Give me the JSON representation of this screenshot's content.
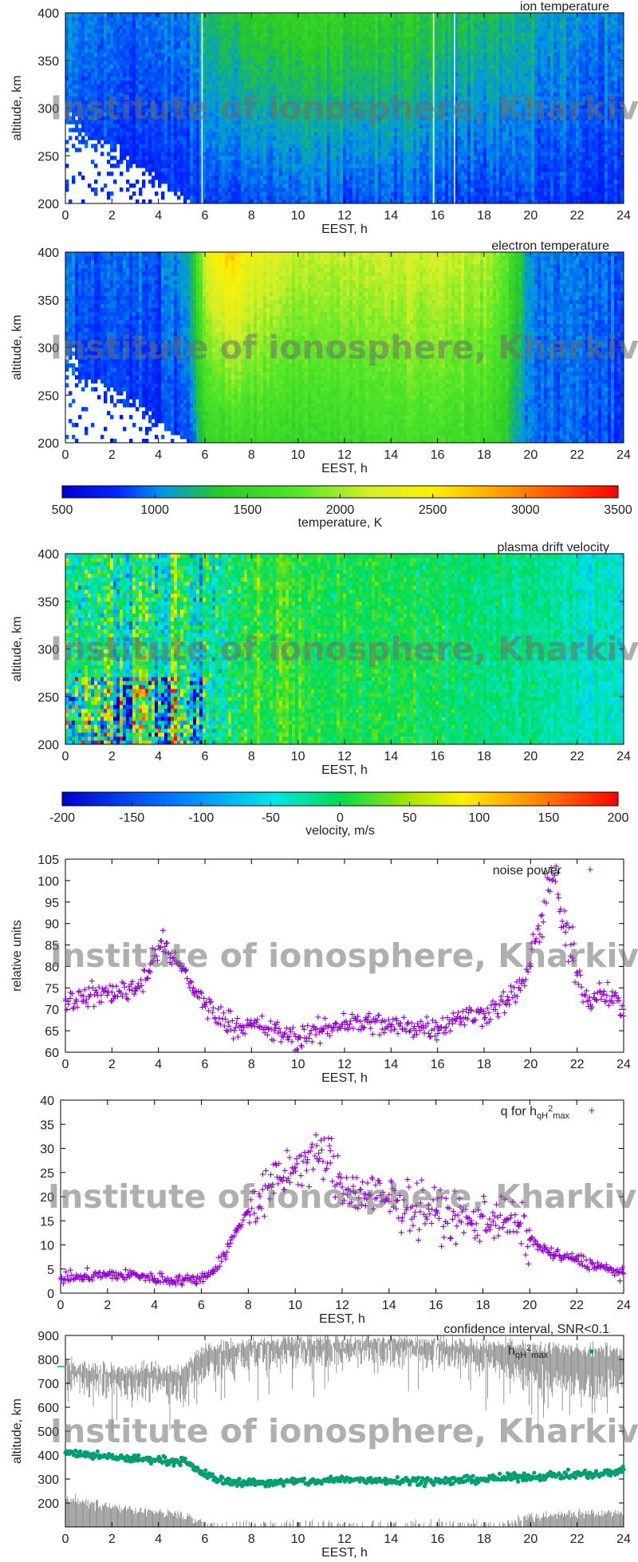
{
  "watermark": "Institute of ionosphere, Kharkiv",
  "chart_data": [
    {
      "id": "ion",
      "type": "heatmap",
      "title": "ion temperature",
      "xlabel": "EEST, h",
      "ylabel": "altitude, km",
      "xlim": [
        0,
        24
      ],
      "ylim": [
        200,
        400
      ],
      "xticks": [
        0,
        2,
        4,
        6,
        8,
        10,
        12,
        14,
        16,
        18,
        20,
        22,
        24
      ],
      "yticks": [
        200,
        250,
        300,
        350,
        400
      ],
      "colorscale": "temperature",
      "value_profile": {
        "hours": [
          0,
          2,
          4,
          5.5,
          6,
          8,
          10,
          12,
          14,
          16,
          18,
          20,
          22,
          24
        ],
        "low_altitude_K": [
          800,
          780,
          760,
          800,
          850,
          880,
          900,
          900,
          890,
          880,
          860,
          840,
          820,
          800
        ],
        "high_altitude_K": [
          1000,
          950,
          950,
          1000,
          1250,
          1400,
          1450,
          1450,
          1400,
          1350,
          1300,
          1150,
          1050,
          1000
        ]
      },
      "no_data": "white region below ~290 km before ~5.5 h"
    },
    {
      "id": "elec",
      "type": "heatmap",
      "title": "electron temperature",
      "xlabel": "EEST, h",
      "ylabel": "altitude, km",
      "xlim": [
        0,
        24
      ],
      "ylim": [
        200,
        400
      ],
      "xticks": [
        0,
        2,
        4,
        6,
        8,
        10,
        12,
        14,
        16,
        18,
        20,
        22,
        24
      ],
      "yticks": [
        200,
        250,
        300,
        350,
        400
      ],
      "colorscale": "temperature",
      "value_profile": {
        "hours": [
          0,
          4,
          5.3,
          6,
          7,
          8,
          10,
          12,
          14,
          16,
          18,
          18.8,
          19.5,
          20,
          22,
          24
        ],
        "low_altitude_K": [
          820,
          800,
          850,
          1450,
          1500,
          1550,
          1500,
          1550,
          1600,
          1600,
          1550,
          1450,
          1100,
          950,
          900,
          850
        ],
        "high_altitude_K": [
          950,
          950,
          1100,
          2200,
          2650,
          2350,
          2100,
          2100,
          2150,
          2150,
          2050,
          1900,
          1400,
          1000,
          950,
          950
        ]
      },
      "no_data": "white region below ~290 km before ~5.3 h"
    },
    {
      "id": "temp_bar",
      "type": "colorbar",
      "label": "temperature, K",
      "range": [
        500,
        3500
      ],
      "ticks": [
        500,
        1000,
        1500,
        2000,
        2500,
        3000,
        3500
      ]
    },
    {
      "id": "vel",
      "type": "heatmap",
      "title": "plasma drift velocity",
      "xlabel": "EEST, h",
      "ylabel": "altitude, km",
      "xlim": [
        0,
        24
      ],
      "ylim": [
        200,
        400
      ],
      "xticks": [
        0,
        2,
        4,
        6,
        8,
        10,
        12,
        14,
        16,
        18,
        20,
        22,
        24
      ],
      "yticks": [
        200,
        250,
        300,
        350,
        400
      ],
      "colorscale": "velocity",
      "value_profile": {
        "hours": [
          0,
          6,
          8,
          12,
          16,
          20,
          24
        ],
        "typical_ms": [
          -10,
          -10,
          10,
          5,
          0,
          -20,
          -40
        ],
        "spread_ms": [
          60,
          60,
          25,
          20,
          20,
          20,
          20
        ]
      },
      "notes": "high variability below 270 km before 6 h"
    },
    {
      "id": "vel_bar",
      "type": "colorbar",
      "label": "velocity, m/s",
      "range": [
        -200,
        200
      ],
      "ticks": [
        -200,
        -150,
        -100,
        -50,
        0,
        50,
        100,
        150,
        200
      ]
    },
    {
      "id": "noise",
      "type": "scatter",
      "legend": "noise power",
      "legend_position": "top-right",
      "color": "#9400d3",
      "xlabel": "EEST, h",
      "ylabel": "relative units",
      "xlim": [
        0,
        24
      ],
      "ylim": [
        60,
        105
      ],
      "xticks": [
        0,
        2,
        4,
        6,
        8,
        10,
        12,
        14,
        16,
        18,
        20,
        22,
        24
      ],
      "yticks": [
        60,
        65,
        70,
        75,
        80,
        85,
        90,
        95,
        100,
        105
      ],
      "x": [
        0,
        1,
        2,
        3,
        3.6,
        4.1,
        4.5,
        5,
        5.5,
        6,
        7,
        8,
        9,
        10,
        11,
        12,
        13,
        14,
        15,
        16,
        17,
        18,
        19,
        19.5,
        20,
        20.5,
        20.9,
        21.2,
        21.5,
        21.8,
        22,
        22.5,
        23,
        23.5,
        24
      ],
      "y": [
        72,
        73,
        74,
        75,
        79,
        86,
        82,
        80,
        75,
        71,
        67,
        66,
        65,
        63,
        65,
        67,
        67,
        66,
        66,
        66,
        68,
        69,
        72,
        75,
        80,
        92,
        102,
        96,
        88,
        82,
        78,
        72,
        74,
        73,
        70
      ]
    },
    {
      "id": "q",
      "type": "scatter",
      "legend": "q for h",
      "legend_sub": "qH",
      "legend_sup": "2",
      "legend_sub2": "max",
      "legend_position": "top-right",
      "color": "#9400d3",
      "xlabel": "EEST, h",
      "xlim": [
        0,
        24
      ],
      "ylim": [
        0,
        40
      ],
      "xticks": [
        0,
        2,
        4,
        6,
        8,
        10,
        12,
        14,
        16,
        18,
        20,
        22,
        24
      ],
      "yticks": [
        0,
        5,
        10,
        15,
        20,
        25,
        30,
        35,
        40
      ],
      "x": [
        0,
        1,
        2,
        3,
        4,
        5,
        5.8,
        6.5,
        7,
        7.5,
        8,
        8.5,
        9,
        9.5,
        10,
        10.5,
        11,
        11.5,
        12,
        12.5,
        13,
        14,
        15,
        16,
        17,
        17.5,
        18,
        18.5,
        19,
        19.5,
        20,
        21,
        22,
        23,
        24
      ],
      "y": [
        3,
        3.5,
        3.8,
        3.8,
        3,
        2.8,
        2.8,
        4.5,
        8,
        13,
        17,
        20,
        22,
        24,
        26,
        27,
        29,
        27,
        22,
        21,
        20.5,
        19,
        18,
        17,
        15,
        14.5,
        16,
        16,
        15,
        14,
        11,
        8,
        7,
        5.5,
        4
      ]
    },
    {
      "id": "snr",
      "type": "scatter",
      "title": "confidence interval, SNR<0.1",
      "legend": "h",
      "legend_sub": "qH",
      "legend_sup": "2",
      "legend_sub2": "max",
      "legend_position": "top-right",
      "color": "#009e73",
      "band_color": "#8c8c8c",
      "xlabel": "EEST, h",
      "ylabel": "altitude, km",
      "xlim": [
        0,
        24
      ],
      "ylim": [
        100,
        900
      ],
      "xticks": [
        0,
        2,
        4,
        6,
        8,
        10,
        12,
        14,
        16,
        18,
        20,
        22,
        24
      ],
      "yticks": [
        200,
        300,
        400,
        500,
        600,
        700,
        800,
        900
      ],
      "x": [
        0,
        1,
        2,
        3,
        4,
        4.5,
        5,
        5.5,
        6,
        6.5,
        7,
        8,
        9,
        10,
        11,
        12,
        13,
        14,
        15,
        16,
        17,
        18,
        19,
        20,
        21,
        22,
        23,
        24
      ],
      "y": [
        410,
        400,
        390,
        385,
        380,
        375,
        375,
        350,
        320,
        300,
        290,
        285,
        285,
        290,
        290,
        300,
        295,
        295,
        295,
        290,
        295,
        300,
        305,
        310,
        315,
        320,
        320,
        340
      ],
      "upper_band": {
        "x": [
          0,
          2,
          4,
          5,
          6,
          7,
          8,
          10,
          12,
          14,
          16,
          18,
          20,
          21,
          22,
          23,
          24
        ],
        "top": [
          780,
          760,
          760,
          760,
          850,
          850,
          870,
          880,
          880,
          880,
          880,
          860,
          850,
          850,
          840,
          840,
          830
        ],
        "bottom": [
          700,
          690,
          680,
          670,
          750,
          770,
          800,
          810,
          810,
          810,
          810,
          780,
          720,
          700,
          680,
          690,
          700
        ]
      },
      "lower_band": {
        "x": [
          0,
          1,
          2,
          3,
          4,
          5,
          6,
          19,
          20,
          21,
          22,
          23,
          24
        ],
        "top": [
          220,
          200,
          180,
          170,
          160,
          150,
          110,
          110,
          140,
          150,
          155,
          160,
          160
        ]
      }
    }
  ]
}
